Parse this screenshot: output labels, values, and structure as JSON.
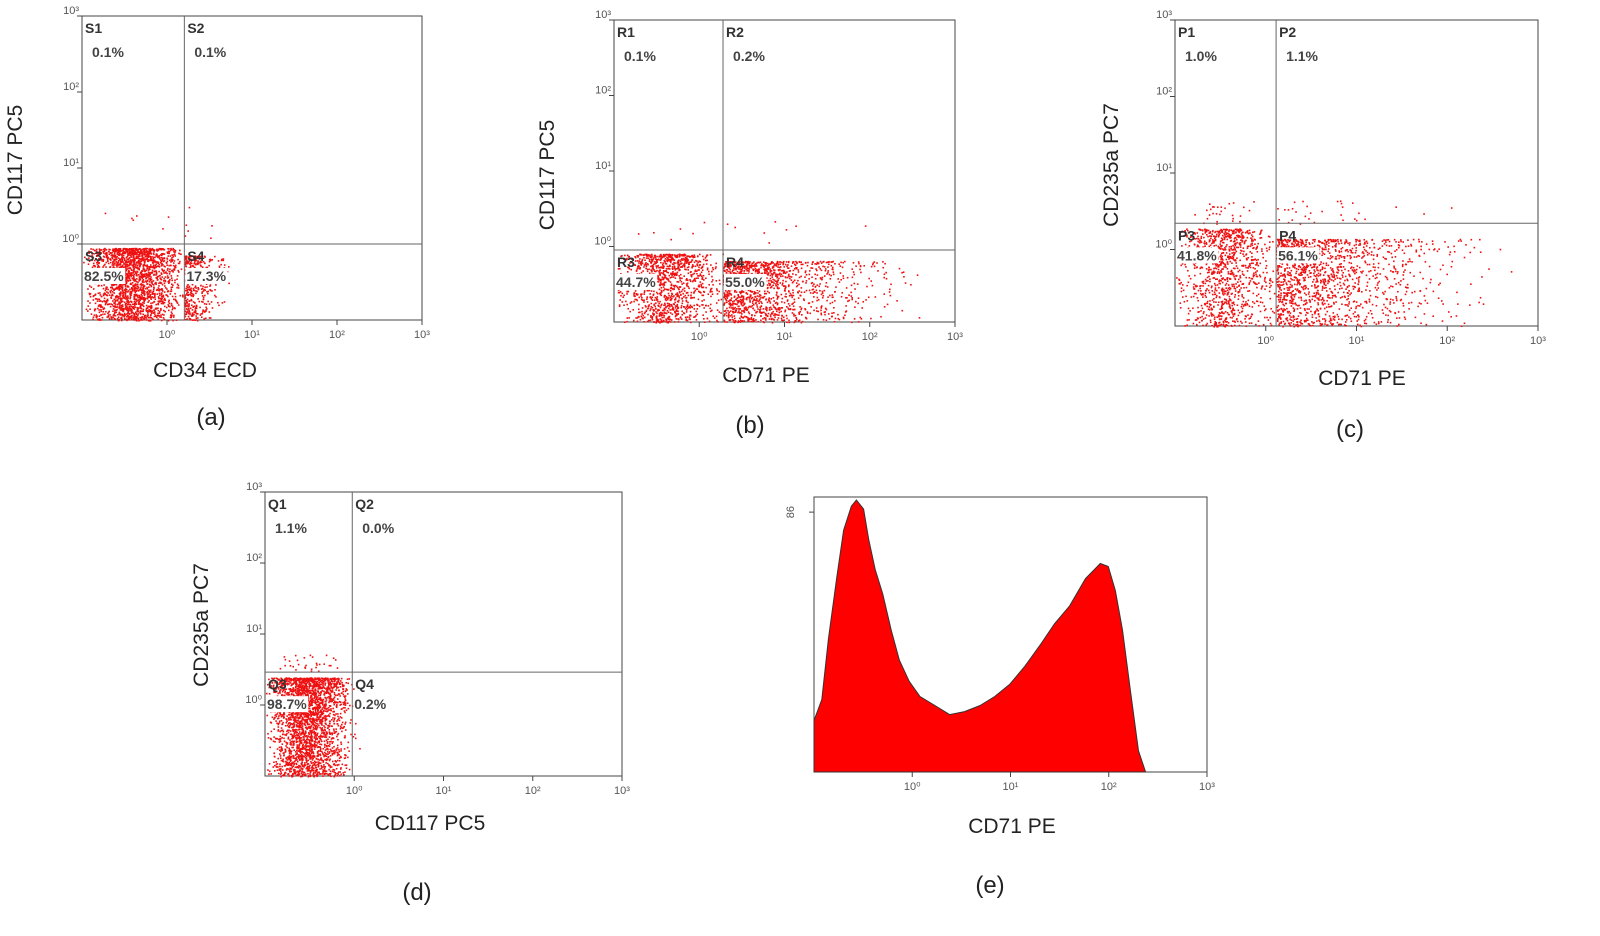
{
  "chart_data": [
    {
      "type": "quadrant-scatter",
      "caption": "(a)",
      "xlabel": "CD34 ECD",
      "ylabel": "CD117  PC5",
      "log_scale": true,
      "color": "#ee1111",
      "xlim": [
        0.1,
        1000
      ],
      "ylim": [
        0.1,
        1000
      ],
      "xticks": [
        {
          "value": 1,
          "label": "10⁰"
        },
        {
          "value": 10,
          "label": "10¹"
        },
        {
          "value": 100,
          "label": "10²"
        },
        {
          "value": 1000,
          "label": "10³"
        }
      ],
      "yticks": [
        {
          "value": 1,
          "label": "10⁰"
        },
        {
          "value": 10,
          "label": "10¹"
        },
        {
          "value": 100,
          "label": "10²"
        },
        {
          "value": 1000,
          "label": "10³"
        }
      ],
      "gate_x": 1.6,
      "gate_y": 1.0,
      "quadrants": [
        "S1",
        "S2",
        "S3",
        "S4"
      ],
      "values": [
        0.1,
        0.1,
        82.5,
        17.3
      ],
      "value_labels": [
        "0.1%",
        "0.1%",
        "82.5%",
        "17.3%"
      ]
    },
    {
      "type": "quadrant-scatter",
      "caption": "(b)",
      "xlabel": "CD71 PE",
      "ylabel": "CD117  PC5",
      "log_scale": true,
      "color": "#ee1111",
      "xlim": [
        0.1,
        1000
      ],
      "ylim": [
        0.1,
        1000
      ],
      "xticks": [
        {
          "value": 1,
          "label": "10⁰"
        },
        {
          "value": 10,
          "label": "10¹"
        },
        {
          "value": 100,
          "label": "10²"
        },
        {
          "value": 1000,
          "label": "10³"
        }
      ],
      "yticks": [
        {
          "value": 1,
          "label": "10⁰"
        },
        {
          "value": 10,
          "label": "10¹"
        },
        {
          "value": 100,
          "label": "10²"
        },
        {
          "value": 1000,
          "label": "10³"
        }
      ],
      "gate_x": 1.9,
      "gate_y": 0.9,
      "quadrants": [
        "R1",
        "R2",
        "R3",
        "R4"
      ],
      "values": [
        0.1,
        0.2,
        44.7,
        55.0
      ],
      "value_labels": [
        "0.1%",
        "0.2%",
        "44.7%",
        "55.0%"
      ]
    },
    {
      "type": "quadrant-scatter",
      "caption": "(c)",
      "xlabel": "CD71 PE",
      "ylabel": "CD235a PC7",
      "log_scale": true,
      "color": "#ee1111",
      "xlim": [
        0.1,
        1000
      ],
      "ylim": [
        0.1,
        1000
      ],
      "xticks": [
        {
          "value": 1,
          "label": "10⁰"
        },
        {
          "value": 10,
          "label": "10¹"
        },
        {
          "value": 100,
          "label": "10²"
        },
        {
          "value": 1000,
          "label": "10³"
        }
      ],
      "yticks": [
        {
          "value": 1,
          "label": "10⁰"
        },
        {
          "value": 10,
          "label": "10¹"
        },
        {
          "value": 100,
          "label": "10²"
        },
        {
          "value": 1000,
          "label": "10³"
        }
      ],
      "gate_x": 1.3,
      "gate_y": 2.2,
      "quadrants": [
        "P1",
        "P2",
        "P3",
        "P4"
      ],
      "values": [
        1.0,
        1.1,
        41.8,
        56.1
      ],
      "value_labels": [
        "1.0%",
        "1.1%",
        "41.8%",
        "56.1%"
      ]
    },
    {
      "type": "quadrant-scatter",
      "caption": "(d)",
      "xlabel": "CD117 PC5",
      "ylabel": "CD235a PC7",
      "log_scale": true,
      "color": "#ee1111",
      "xlim": [
        0.1,
        1000
      ],
      "ylim": [
        0.1,
        1000
      ],
      "xticks": [
        {
          "value": 1,
          "label": "10⁰"
        },
        {
          "value": 10,
          "label": "10¹"
        },
        {
          "value": 100,
          "label": "10²"
        },
        {
          "value": 1000,
          "label": "10³"
        }
      ],
      "yticks": [
        {
          "value": 1,
          "label": "10⁰"
        },
        {
          "value": 10,
          "label": "10¹"
        },
        {
          "value": 100,
          "label": "10²"
        },
        {
          "value": 1000,
          "label": "10³"
        }
      ],
      "gate_x": 0.95,
      "gate_y": 2.9,
      "quadrants": [
        "Q1",
        "Q2",
        "Q3",
        "Q4"
      ],
      "values": [
        1.1,
        0.0,
        98.7,
        0.2
      ],
      "value_labels": [
        "1.1%",
        "0.0%",
        "98.7%",
        "0.2%"
      ]
    },
    {
      "type": "histogram",
      "caption": "(e)",
      "xlabel": "CD71 PE",
      "log_scale": true,
      "color": "#ff0000",
      "xlim": [
        0.1,
        1000
      ],
      "ylim": [
        0,
        91
      ],
      "xticks": [
        {
          "value": 1,
          "label": "10⁰"
        },
        {
          "value": 10,
          "label": "10¹"
        },
        {
          "value": 100,
          "label": "10²"
        },
        {
          "value": 1000,
          "label": "10³"
        }
      ],
      "yticks": [
        86
      ],
      "x": [
        0.1,
        0.12,
        0.14,
        0.17,
        0.2,
        0.24,
        0.27,
        0.32,
        0.36,
        0.42,
        0.5,
        0.61,
        0.74,
        0.93,
        1.2,
        1.7,
        2.4,
        3.4,
        4.9,
        6.9,
        9.8,
        14,
        20,
        28,
        40,
        58,
        82,
        99,
        117,
        138,
        166,
        201,
        237
      ],
      "values": [
        17,
        24,
        44,
        64,
        80,
        88,
        90,
        87,
        77,
        67,
        59,
        47,
        37,
        30,
        25,
        22,
        19,
        20,
        22,
        25,
        29,
        35,
        42,
        49,
        55,
        64,
        69,
        68,
        60,
        47,
        27,
        7,
        0
      ]
    }
  ]
}
